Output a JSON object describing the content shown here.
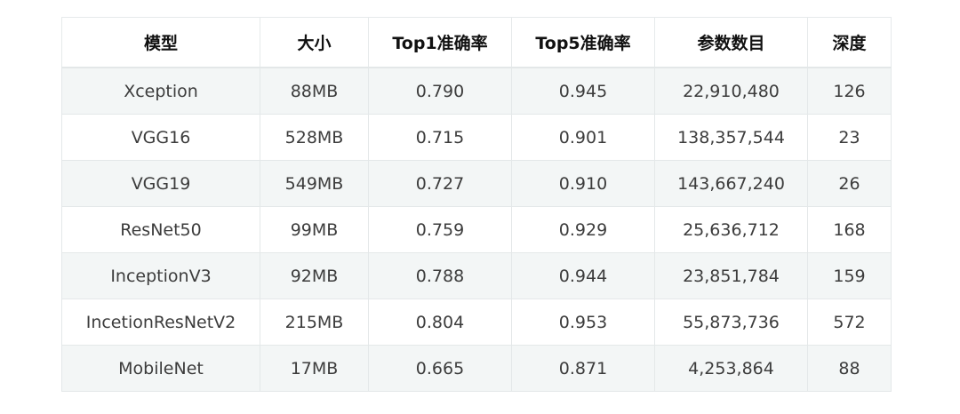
{
  "table": {
    "headers": [
      "模型",
      "大小",
      "Top1准确率",
      "Top5准确率",
      "参数数目",
      "深度"
    ],
    "rows": [
      [
        "Xception",
        "88MB",
        "0.790",
        "0.945",
        "22,910,480",
        "126"
      ],
      [
        "VGG16",
        "528MB",
        "0.715",
        "0.901",
        "138,357,544",
        "23"
      ],
      [
        "VGG19",
        "549MB",
        "0.727",
        "0.910",
        "143,667,240",
        "26"
      ],
      [
        "ResNet50",
        "99MB",
        "0.759",
        "0.929",
        "25,636,712",
        "168"
      ],
      [
        "InceptionV3",
        "92MB",
        "0.788",
        "0.944",
        "23,851,784",
        "159"
      ],
      [
        "IncetionResNetV2",
        "215MB",
        "0.804",
        "0.953",
        "55,873,736",
        "572"
      ],
      [
        "MobileNet",
        "17MB",
        "0.665",
        "0.871",
        "4,253,864",
        "88"
      ]
    ]
  },
  "colors": {
    "header_bg": "#ffffff",
    "row_alt_bg": "#f3f6f6",
    "row_bg": "#ffffff",
    "border": "#e4e8e9",
    "header_text": "#111111",
    "cell_text": "#3c3c3c"
  }
}
